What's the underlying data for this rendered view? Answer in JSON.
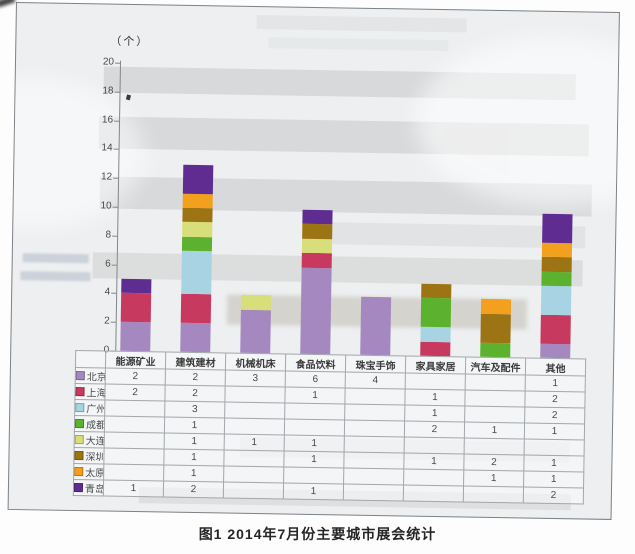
{
  "caption": "图1 2014年7月份主要城市展会统计",
  "chart_data": {
    "type": "bar",
    "stacked": true,
    "title": "图1 2014年7月份主要城市展会统计",
    "unit_label": "（个）",
    "xlabel": "",
    "ylabel": "个",
    "ylim": [
      0,
      20
    ],
    "ytick_step": 2,
    "yticks": [
      0,
      2,
      4,
      6,
      8,
      10,
      12,
      14,
      16,
      18,
      20
    ],
    "grid": false,
    "legend_position": "table-left",
    "categories": [
      "能源矿业",
      "建筑建材",
      "机械机床",
      "食品饮料",
      "珠宝手饰",
      "家具家居",
      "汽车及配件",
      "其他"
    ],
    "series": [
      {
        "name": "北京",
        "color": "#a588bf",
        "values": [
          2,
          2,
          3,
          6,
          4,
          null,
          null,
          1
        ]
      },
      {
        "name": "上海",
        "color": "#c7395f",
        "values": [
          2,
          2,
          null,
          1,
          null,
          1,
          null,
          2
        ]
      },
      {
        "name": "广州",
        "color": "#a7d3e3",
        "values": [
          null,
          3,
          null,
          null,
          null,
          1,
          null,
          2
        ]
      },
      {
        "name": "成都",
        "color": "#5cb22f",
        "values": [
          null,
          1,
          null,
          null,
          null,
          2,
          1,
          1
        ]
      },
      {
        "name": "大连",
        "color": "#d7de7a",
        "values": [
          null,
          1,
          1,
          1,
          null,
          null,
          null,
          null
        ]
      },
      {
        "name": "深圳",
        "color": "#9d7413",
        "values": [
          null,
          1,
          null,
          1,
          null,
          1,
          2,
          1
        ]
      },
      {
        "name": "太原",
        "color": "#f2a01e",
        "values": [
          null,
          1,
          null,
          null,
          null,
          null,
          1,
          1
        ]
      },
      {
        "name": "青岛",
        "color": "#5f2d92",
        "values": [
          1,
          2,
          null,
          1,
          null,
          null,
          null,
          2
        ]
      }
    ],
    "category_totals": [
      5,
      13,
      4,
      10,
      4,
      5,
      4,
      10
    ]
  }
}
